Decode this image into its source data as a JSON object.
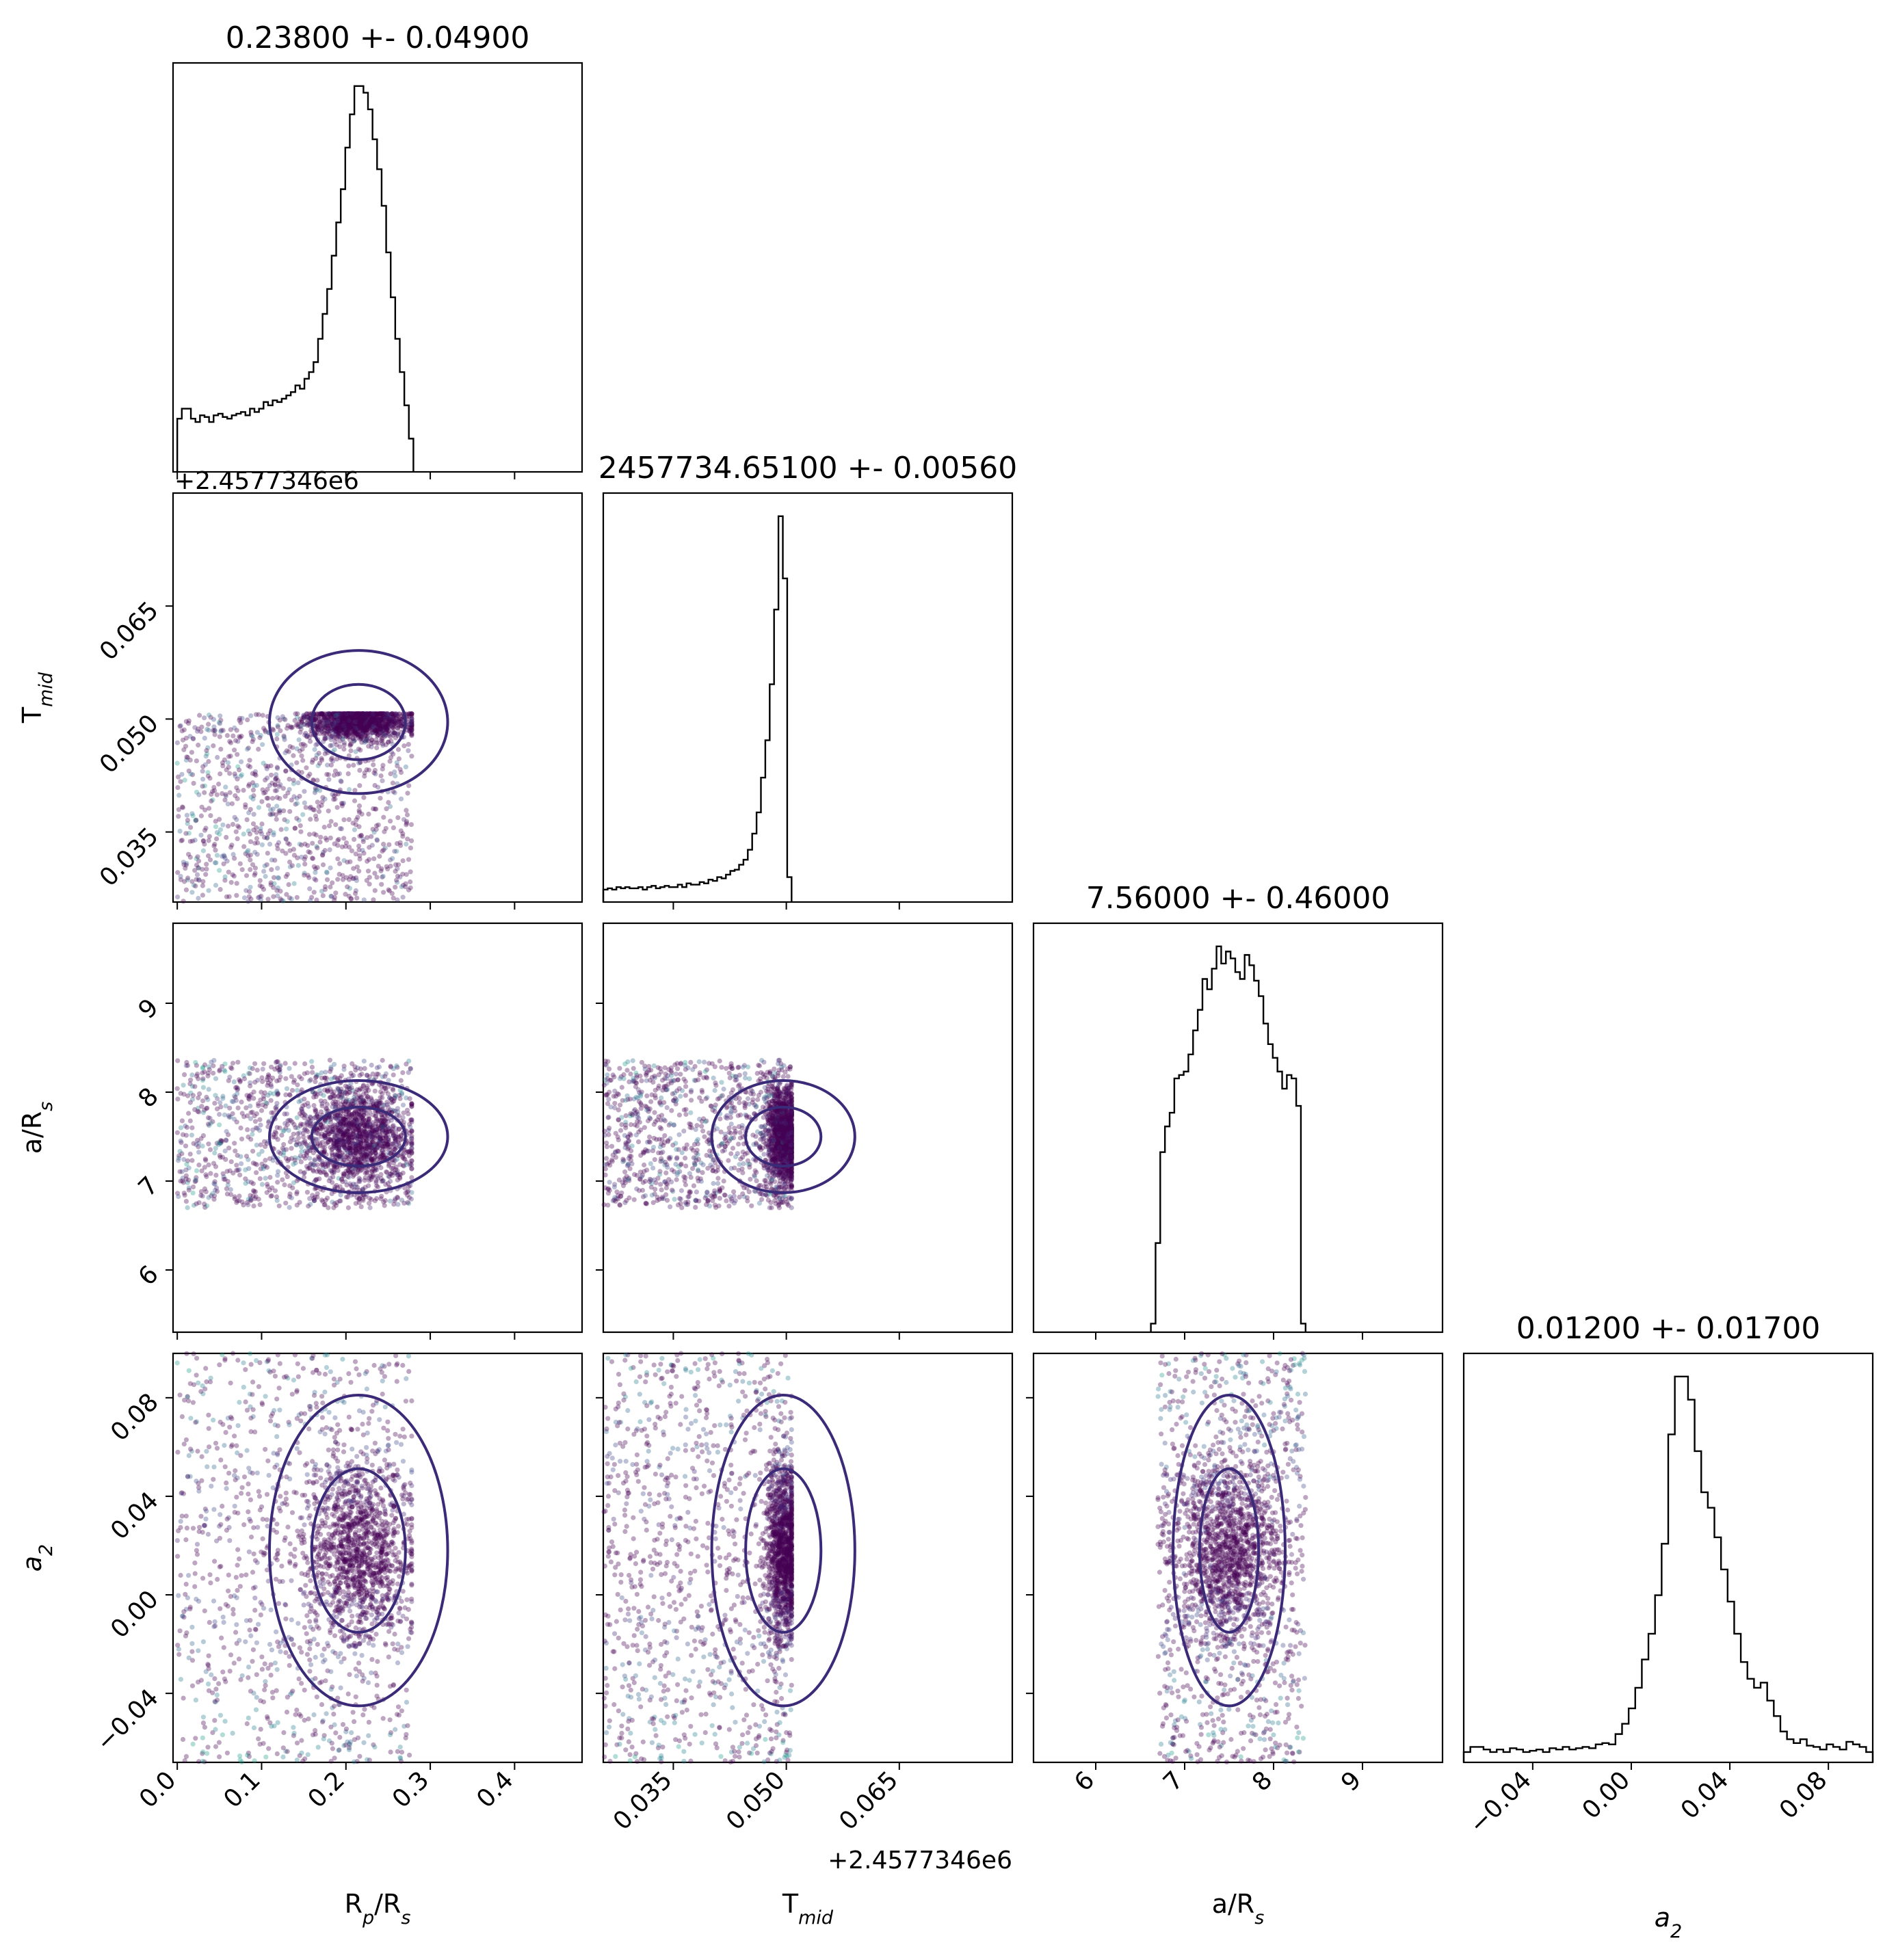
{
  "chart_data": {
    "type": "corner",
    "offset_label": "+2.4577346e6",
    "parameters": [
      {
        "key": "rp",
        "label": "R",
        "sub": "p",
        "label_tail": "/R",
        "sub2": "s",
        "range": [
          -0.005,
          0.48
        ],
        "ticks": [
          0.0,
          0.1,
          0.2,
          0.3,
          0.4
        ],
        "tick_labels": [
          "0.0",
          "0.1",
          "0.2",
          "0.3",
          "0.4"
        ]
      },
      {
        "key": "tmid",
        "label": "T",
        "sub": "mid",
        "range": [
          0.0257,
          0.08
        ],
        "ticks": [
          0.035,
          0.05,
          0.065
        ],
        "tick_labels": [
          "0.035",
          "0.050",
          "0.065"
        ]
      },
      {
        "key": "ars",
        "label": "a/R",
        "sub": "s",
        "range": [
          5.3,
          9.9
        ],
        "ticks": [
          6,
          7,
          8,
          9
        ],
        "tick_labels": [
          "6",
          "7",
          "8",
          "9"
        ]
      },
      {
        "key": "a2",
        "label": "a",
        "sub": "2",
        "italic": true,
        "range": [
          -0.068,
          0.098
        ],
        "ticks": [
          -0.04,
          0.0,
          0.04,
          0.08
        ],
        "tick_labels": [
          "−0.04",
          "0.00",
          "0.04",
          "0.08"
        ]
      }
    ],
    "titles": [
      "0.23800 +- 0.04900",
      "2457734.65100 +- 0.00560",
      "7.56000 +- 0.46000",
      "0.01200 +- 0.01700"
    ],
    "marginals": [
      {
        "bins": [
          0.0,
          0.28
        ],
        "counts": [
          32,
          38,
          38,
          32,
          30,
          34,
          33,
          30,
          34,
          35,
          33,
          32,
          34,
          35,
          36,
          34,
          38,
          36,
          38,
          42,
          40,
          43,
          42,
          44,
          46,
          48,
          52,
          50,
          56,
          60,
          66,
          80,
          95,
          110,
          130,
          150,
          170,
          195,
          215,
          232,
          232,
          228,
          218,
          200,
          182,
          160,
          132,
          105,
          80,
          60,
          40,
          20
        ]
      },
      {
        "bins": [
          0.0257,
          0.0507
        ],
        "counts": [
          10,
          11,
          10,
          12,
          11,
          12,
          11,
          11,
          12,
          10,
          12,
          13,
          11,
          12,
          13,
          12,
          12,
          14,
          12,
          15,
          14,
          14,
          16,
          15,
          18,
          17,
          20,
          19,
          22,
          25,
          26,
          30,
          34,
          42,
          55,
          72,
          100,
          130,
          175,
          235,
          310,
          260,
          20
        ]
      },
      {
        "bins": [
          6.62,
          8.36
        ],
        "counts": [
          5,
          52,
          105,
          120,
          128,
          148,
          150,
          152,
          162,
          176,
          188,
          206,
          200,
          212,
          225,
          215,
          222,
          218,
          210,
          206,
          220,
          214,
          205,
          196,
          180,
          168,
          160,
          152,
          142,
          150,
          148,
          132,
          5
        ]
      },
      {
        "bins": [
          -0.068,
          0.098
        ],
        "counts": [
          8,
          12,
          12,
          10,
          8,
          10,
          8,
          11,
          10,
          8,
          9,
          10,
          8,
          11,
          10,
          12,
          10,
          11,
          12,
          11,
          14,
          15,
          14,
          22,
          30,
          42,
          58,
          80,
          100,
          130,
          170,
          255,
          300,
          300,
          282,
          242,
          210,
          198,
          175,
          150,
          125,
          100,
          78,
          65,
          58,
          62,
          48,
          36,
          24,
          18,
          15,
          18,
          13,
          12,
          10,
          14,
          12,
          10,
          16,
          14,
          12,
          8
        ]
      }
    ],
    "scatter_extent": {
      "rp": [
        0.0,
        0.278
      ],
      "tmid": [
        0.0257,
        0.0507
      ],
      "ars": [
        6.7,
        8.36
      ],
      "a2": [
        -0.068,
        0.098
      ]
    },
    "cluster_center": {
      "rp": 0.215,
      "tmid": 0.0496,
      "ars": 7.5,
      "a2": 0.018
    },
    "point_colors": [
      "#440154",
      "#482878",
      "#3e4a89",
      "#31688e",
      "#26828e",
      "#1f9e89",
      "#35b779",
      "#6ece58",
      "#b5de2b",
      "#fde725"
    ],
    "contour_color": "#3b2a78",
    "hist_color": "#000000",
    "grid": false
  }
}
